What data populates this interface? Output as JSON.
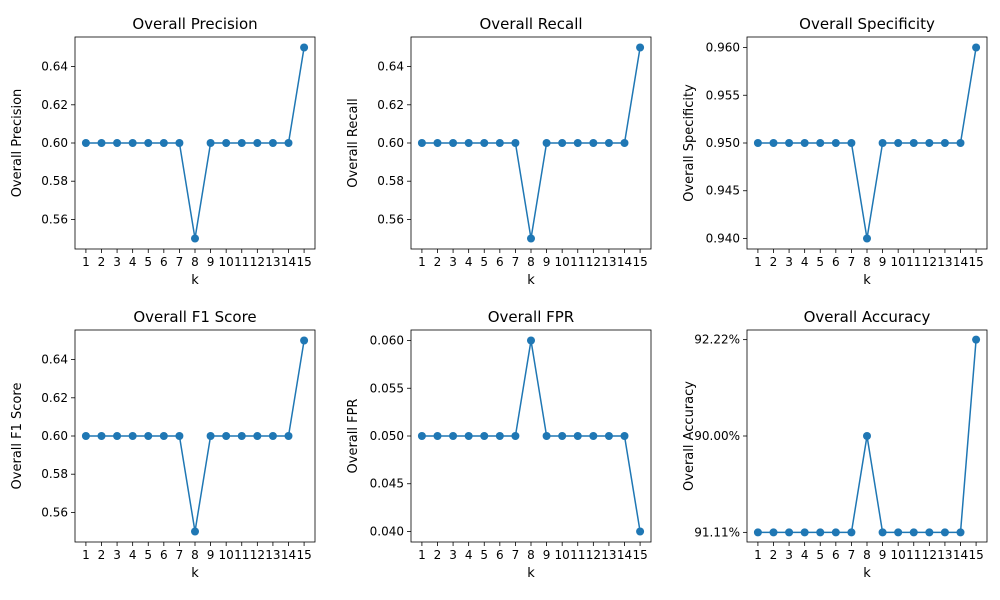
{
  "chart_data": [
    {
      "type": "line",
      "title": "Overall Precision",
      "xlabel": "k",
      "ylabel": "Overall Precision",
      "x": [
        "1",
        "2",
        "3",
        "4",
        "5",
        "6",
        "7",
        "8",
        "9",
        "10",
        "11",
        "12",
        "13",
        "14",
        "15"
      ],
      "values": [
        0.6,
        0.6,
        0.6,
        0.6,
        0.6,
        0.6,
        0.6,
        0.55,
        0.6,
        0.6,
        0.6,
        0.6,
        0.6,
        0.6,
        0.65
      ],
      "ylim": [
        0.5445,
        0.6555
      ],
      "yticks": [
        0.56,
        0.58,
        0.6,
        0.62,
        0.64
      ],
      "ytick_labels": [
        "0.56",
        "0.58",
        "0.60",
        "0.62",
        "0.64"
      ],
      "grid": false,
      "marker": "circle",
      "color": "#1f77b4"
    },
    {
      "type": "line",
      "title": "Overall Recall",
      "xlabel": "k",
      "ylabel": "Overall Recall",
      "x": [
        "1",
        "2",
        "3",
        "4",
        "5",
        "6",
        "7",
        "8",
        "9",
        "10",
        "11",
        "12",
        "13",
        "14",
        "15"
      ],
      "values": [
        0.6,
        0.6,
        0.6,
        0.6,
        0.6,
        0.6,
        0.6,
        0.55,
        0.6,
        0.6,
        0.6,
        0.6,
        0.6,
        0.6,
        0.65
      ],
      "ylim": [
        0.5445,
        0.6555
      ],
      "yticks": [
        0.56,
        0.58,
        0.6,
        0.62,
        0.64
      ],
      "ytick_labels": [
        "0.56",
        "0.58",
        "0.60",
        "0.62",
        "0.64"
      ],
      "grid": false,
      "marker": "circle",
      "color": "#1f77b4"
    },
    {
      "type": "line",
      "title": "Overall Specificity",
      "xlabel": "k",
      "ylabel": "Overall Specificity",
      "x": [
        "1",
        "2",
        "3",
        "4",
        "5",
        "6",
        "7",
        "8",
        "9",
        "10",
        "11",
        "12",
        "13",
        "14",
        "15"
      ],
      "values": [
        0.95,
        0.95,
        0.95,
        0.95,
        0.95,
        0.95,
        0.95,
        0.94,
        0.95,
        0.95,
        0.95,
        0.95,
        0.95,
        0.95,
        0.96
      ],
      "ylim": [
        0.9389,
        0.9611
      ],
      "yticks": [
        0.94,
        0.945,
        0.95,
        0.955,
        0.96
      ],
      "ytick_labels": [
        "0.940",
        "0.945",
        "0.950",
        "0.955",
        "0.960"
      ],
      "grid": false,
      "marker": "circle",
      "color": "#1f77b4"
    },
    {
      "type": "line",
      "title": "Overall F1 Score",
      "xlabel": "k",
      "ylabel": "Overall F1 Score",
      "x": [
        "1",
        "2",
        "3",
        "4",
        "5",
        "6",
        "7",
        "8",
        "9",
        "10",
        "11",
        "12",
        "13",
        "14",
        "15"
      ],
      "values": [
        0.6,
        0.6,
        0.6,
        0.6,
        0.6,
        0.6,
        0.6,
        0.55,
        0.6,
        0.6,
        0.6,
        0.6,
        0.6,
        0.6,
        0.65
      ],
      "ylim": [
        0.5445,
        0.6555
      ],
      "yticks": [
        0.56,
        0.58,
        0.6,
        0.62,
        0.64
      ],
      "ytick_labels": [
        "0.56",
        "0.58",
        "0.60",
        "0.62",
        "0.64"
      ],
      "grid": false,
      "marker": "circle",
      "color": "#1f77b4"
    },
    {
      "type": "line",
      "title": "Overall FPR",
      "xlabel": "k",
      "ylabel": "Overall FPR",
      "x": [
        "1",
        "2",
        "3",
        "4",
        "5",
        "6",
        "7",
        "8",
        "9",
        "10",
        "11",
        "12",
        "13",
        "14",
        "15"
      ],
      "values": [
        0.05,
        0.05,
        0.05,
        0.05,
        0.05,
        0.05,
        0.05,
        0.06,
        0.05,
        0.05,
        0.05,
        0.05,
        0.05,
        0.05,
        0.04
      ],
      "ylim": [
        0.0389,
        0.0611
      ],
      "yticks": [
        0.04,
        0.045,
        0.05,
        0.055,
        0.06
      ],
      "ytick_labels": [
        "0.040",
        "0.045",
        "0.050",
        "0.055",
        "0.060"
      ],
      "grid": false,
      "marker": "circle",
      "color": "#1f77b4"
    },
    {
      "type": "line",
      "title": "Overall Accuracy",
      "xlabel": "k",
      "ylabel": "Overall Accuracy",
      "x": [
        "1",
        "2",
        "3",
        "4",
        "5",
        "6",
        "7",
        "8",
        "9",
        "10",
        "11",
        "12",
        "13",
        "14",
        "15"
      ],
      "y_categories": [
        "91.11%",
        "90.00%",
        "92.22%"
      ],
      "values": [
        "91.11%",
        "91.11%",
        "91.11%",
        "91.11%",
        "91.11%",
        "91.11%",
        "91.11%",
        "90.00%",
        "91.11%",
        "91.11%",
        "91.11%",
        "91.11%",
        "91.11%",
        "91.11%",
        "92.22%"
      ],
      "grid": false,
      "marker": "circle",
      "color": "#1f77b4"
    }
  ]
}
